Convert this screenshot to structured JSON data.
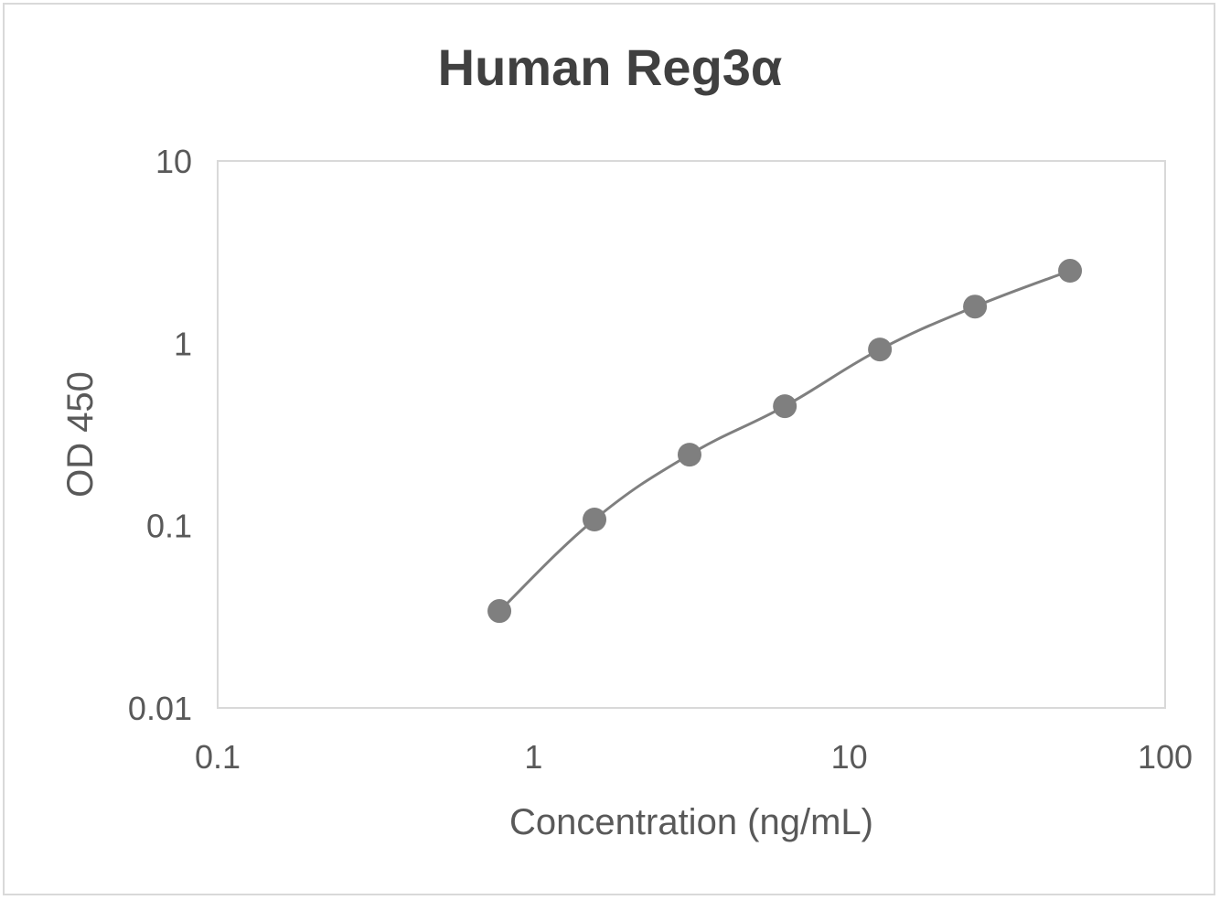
{
  "chart_data": {
    "type": "scatter",
    "title": "Human Reg3α",
    "xlabel": "Concentration (ng/mL)",
    "ylabel": "OD 450",
    "xscale": "log",
    "yscale": "log",
    "xlim": [
      0.1,
      100
    ],
    "ylim": [
      0.01,
      10
    ],
    "x_ticks": [
      "0.1",
      "1",
      "10",
      "100"
    ],
    "y_ticks": [
      "0.01",
      "0.1",
      "1",
      "10"
    ],
    "grid": false,
    "legend": null,
    "line": "smoothed",
    "series": [
      {
        "name": "Human Reg3α",
        "color": "#7f7f7f",
        "x": [
          0.78,
          1.56,
          3.12,
          6.25,
          12.5,
          25,
          50
        ],
        "y": [
          0.034,
          0.108,
          0.245,
          0.452,
          0.925,
          1.59,
          2.5
        ]
      }
    ]
  },
  "colors": {
    "series": "#7f7f7f",
    "text": "#595959",
    "title": "#404040",
    "plot_border": "#d9d9d9"
  }
}
